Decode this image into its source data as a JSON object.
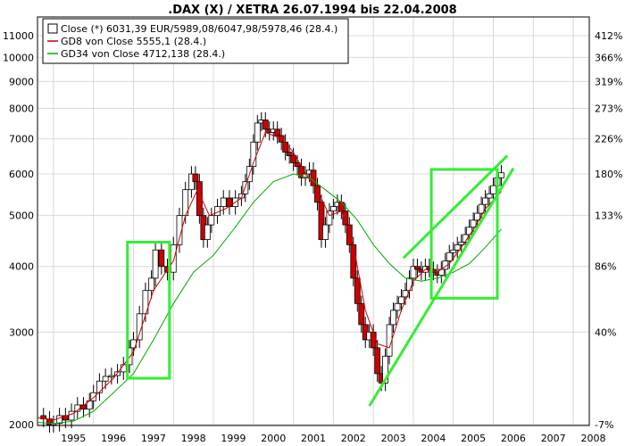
{
  "chart_data": {
    "type": "line",
    "title": ".DAX (X) / XETRA 26.07.1994 bis 22.04.2008",
    "log_scale": true,
    "grid": true,
    "legend_placement": "top-left",
    "colors": {
      "up_candle": "#ffffff",
      "down_candle": "#cc0000",
      "gd8": "#cc0000",
      "gd34": "#00aa00",
      "annotation": "#33ee33",
      "grid": "#d8d8d8"
    },
    "legend": [
      {
        "label": "Close (*) 6031,39 EUR/5989,08/6047,98/5978,46 (28.4.)",
        "kind": "box"
      },
      {
        "label": "GD8 von Close 5555,1 (28.4.)",
        "kind": "line",
        "color": "#cc0000"
      },
      {
        "label": "GD34 von Close 4712,138 (28.4.)",
        "kind": "line",
        "color": "#00aa00"
      }
    ],
    "x_ticks": [
      "1995",
      "1996",
      "1997",
      "1998",
      "1999",
      "2000",
      "2001",
      "2002",
      "2003",
      "2004",
      "2005",
      "2006",
      "2007",
      "2008"
    ],
    "x_range": [
      1994.6,
      2008.4
    ],
    "y_range": [
      2000,
      11700
    ],
    "y_ticks_left": [
      {
        "value": 11000,
        "label": "11000"
      },
      {
        "value": 10000,
        "label": "10000"
      },
      {
        "value": 9000,
        "label": "9000"
      },
      {
        "value": 8000,
        "label": "8000"
      },
      {
        "value": 7000,
        "label": "7000"
      },
      {
        "value": 6000,
        "label": "6000"
      },
      {
        "value": 5000,
        "label": "5000"
      },
      {
        "value": 4000,
        "label": "4000"
      },
      {
        "value": 3000,
        "label": "3000"
      },
      {
        "value": 2000,
        "label": "2000"
      }
    ],
    "y_ticks_right": [
      {
        "value": 11000,
        "label": "412%"
      },
      {
        "value": 10000,
        "label": "366%"
      },
      {
        "value": 9000,
        "label": "319%"
      },
      {
        "value": 8000,
        "label": "273%"
      },
      {
        "value": 7000,
        "label": "226%"
      },
      {
        "value": 6000,
        "label": "180%"
      },
      {
        "value": 5000,
        "label": "133%"
      },
      {
        "value": 4000,
        "label": "86%"
      },
      {
        "value": 3000,
        "label": "40%"
      },
      {
        "value": 2000,
        "label": "-7%"
      }
    ],
    "close_series": [
      [
        1994.6,
        2080
      ],
      [
        1994.75,
        2050
      ],
      [
        1994.9,
        2000
      ],
      [
        1995.0,
        2010
      ],
      [
        1995.15,
        2080
      ],
      [
        1995.3,
        2040
      ],
      [
        1995.45,
        2120
      ],
      [
        1995.6,
        2180
      ],
      [
        1995.75,
        2140
      ],
      [
        1995.9,
        2220
      ],
      [
        1996.0,
        2300
      ],
      [
        1996.15,
        2420
      ],
      [
        1996.3,
        2470
      ],
      [
        1996.45,
        2480
      ],
      [
        1996.6,
        2520
      ],
      [
        1996.75,
        2600
      ],
      [
        1996.9,
        2800
      ],
      [
        1997.0,
        2900
      ],
      [
        1997.15,
        3250
      ],
      [
        1997.3,
        3600
      ],
      [
        1997.45,
        3800
      ],
      [
        1997.55,
        4300
      ],
      [
        1997.7,
        4000
      ],
      [
        1997.85,
        3900
      ],
      [
        1998.0,
        4400
      ],
      [
        1998.15,
        5000
      ],
      [
        1998.3,
        5600
      ],
      [
        1998.45,
        6000
      ],
      [
        1998.55,
        5800
      ],
      [
        1998.65,
        5000
      ],
      [
        1998.75,
        4500
      ],
      [
        1998.85,
        4800
      ],
      [
        1998.95,
        5000
      ],
      [
        1999.1,
        5200
      ],
      [
        1999.25,
        5400
      ],
      [
        1999.4,
        5200
      ],
      [
        1999.55,
        5400
      ],
      [
        1999.7,
        5500
      ],
      [
        1999.8,
        5800
      ],
      [
        1999.9,
        6200
      ],
      [
        2000.0,
        6900
      ],
      [
        2000.1,
        7500
      ],
      [
        2000.2,
        7600
      ],
      [
        2000.3,
        7300
      ],
      [
        2000.4,
        7200
      ],
      [
        2000.5,
        7300
      ],
      [
        2000.6,
        7100
      ],
      [
        2000.7,
        6900
      ],
      [
        2000.8,
        6600
      ],
      [
        2000.9,
        6500
      ],
      [
        2001.0,
        6300
      ],
      [
        2001.1,
        6200
      ],
      [
        2001.2,
        5900
      ],
      [
        2001.3,
        6000
      ],
      [
        2001.4,
        6100
      ],
      [
        2001.5,
        5700
      ],
      [
        2001.6,
        5300
      ],
      [
        2001.7,
        4500
      ],
      [
        2001.8,
        4800
      ],
      [
        2001.9,
        5100
      ],
      [
        2002.0,
        5200
      ],
      [
        2002.1,
        5300
      ],
      [
        2002.2,
        5100
      ],
      [
        2002.3,
        4800
      ],
      [
        2002.4,
        4400
      ],
      [
        2002.5,
        3800
      ],
      [
        2002.6,
        3400
      ],
      [
        2002.7,
        3100
      ],
      [
        2002.8,
        2900
      ],
      [
        2002.9,
        3000
      ],
      [
        2003.0,
        2800
      ],
      [
        2003.1,
        2500
      ],
      [
        2003.2,
        2400
      ],
      [
        2003.3,
        2700
      ],
      [
        2003.4,
        3100
      ],
      [
        2003.5,
        3300
      ],
      [
        2003.6,
        3400
      ],
      [
        2003.7,
        3500
      ],
      [
        2003.8,
        3600
      ],
      [
        2003.9,
        3800
      ],
      [
        2004.0,
        4000
      ],
      [
        2004.1,
        3950
      ],
      [
        2004.2,
        3900
      ],
      [
        2004.3,
        4000
      ],
      [
        2004.4,
        3950
      ],
      [
        2004.5,
        3900
      ],
      [
        2004.6,
        3850
      ],
      [
        2004.7,
        3950
      ],
      [
        2004.8,
        4100
      ],
      [
        2004.9,
        4250
      ],
      [
        2005.0,
        4300
      ],
      [
        2005.1,
        4400
      ],
      [
        2005.2,
        4450
      ],
      [
        2005.3,
        4600
      ],
      [
        2005.4,
        4750
      ],
      [
        2005.5,
        4900
      ],
      [
        2005.6,
        5050
      ],
      [
        2005.7,
        5250
      ],
      [
        2005.8,
        5400
      ],
      [
        2005.9,
        5500
      ],
      [
        2006.0,
        5700
      ],
      [
        2006.1,
        5900
      ],
      [
        2006.2,
        6031
      ]
    ],
    "gd8_series": [
      [
        1994.6,
        2060
      ],
      [
        1995.0,
        2040
      ],
      [
        1995.5,
        2100
      ],
      [
        1996.0,
        2250
      ],
      [
        1996.5,
        2450
      ],
      [
        1997.0,
        2750
      ],
      [
        1997.5,
        3600
      ],
      [
        1998.0,
        4100
      ],
      [
        1998.3,
        5000
      ],
      [
        1998.6,
        5600
      ],
      [
        1998.9,
        5000
      ],
      [
        1999.3,
        5150
      ],
      [
        1999.7,
        5400
      ],
      [
        2000.0,
        6300
      ],
      [
        2000.3,
        7200
      ],
      [
        2000.7,
        7000
      ],
      [
        2001.0,
        6600
      ],
      [
        2001.3,
        6000
      ],
      [
        2001.6,
        5600
      ],
      [
        2001.9,
        5000
      ],
      [
        2002.2,
        5100
      ],
      [
        2002.5,
        4400
      ],
      [
        2002.8,
        3300
      ],
      [
        2003.1,
        2850
      ],
      [
        2003.4,
        2800
      ],
      [
        2003.7,
        3300
      ],
      [
        2004.0,
        3750
      ],
      [
        2004.3,
        3950
      ],
      [
        2004.6,
        3900
      ],
      [
        2004.9,
        4050
      ],
      [
        2005.2,
        4350
      ],
      [
        2005.5,
        4700
      ],
      [
        2005.8,
        5150
      ],
      [
        2006.2,
        5555
      ]
    ],
    "gd34_series": [
      [
        1994.6,
        2020
      ],
      [
        1995.0,
        2010
      ],
      [
        1995.5,
        2030
      ],
      [
        1996.0,
        2120
      ],
      [
        1996.5,
        2300
      ],
      [
        1997.0,
        2500
      ],
      [
        1997.5,
        2900
      ],
      [
        1998.0,
        3400
      ],
      [
        1998.5,
        3900
      ],
      [
        1999.0,
        4200
      ],
      [
        1999.5,
        4700
      ],
      [
        2000.0,
        5300
      ],
      [
        2000.5,
        5800
      ],
      [
        2001.0,
        6000
      ],
      [
        2001.4,
        5900
      ],
      [
        2001.8,
        5600
      ],
      [
        2002.2,
        5300
      ],
      [
        2002.6,
        4900
      ],
      [
        2003.0,
        4400
      ],
      [
        2003.4,
        4050
      ],
      [
        2003.8,
        3800
      ],
      [
        2004.2,
        3750
      ],
      [
        2004.6,
        3800
      ],
      [
        2005.0,
        3900
      ],
      [
        2005.4,
        4050
      ],
      [
        2005.8,
        4350
      ],
      [
        2006.2,
        4712
      ]
    ],
    "annotations": {
      "boxes": [
        {
          "x0": 1996.85,
          "x1": 1997.9,
          "y0": 2450,
          "y1": 4450
        },
        {
          "x0": 2004.45,
          "x1": 2006.1,
          "y0": 3480,
          "y1": 6120
        }
      ],
      "lines": [
        {
          "x0": 2002.9,
          "y0": 2170,
          "x1": 2006.5,
          "y1": 6150
        },
        {
          "x0": 2003.75,
          "y0": 4150,
          "x1": 2006.35,
          "y1": 6500
        }
      ]
    }
  }
}
